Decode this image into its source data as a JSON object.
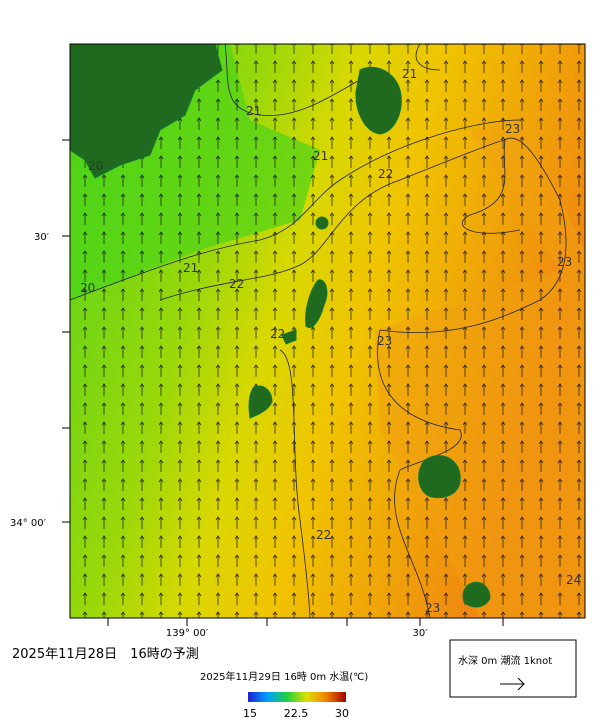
{
  "map": {
    "axis_labels": {
      "lat_30": "30′",
      "lat_34": "34° 00′",
      "lon_139": "139° 00′",
      "lon_30": "30′"
    },
    "contour_labels": [
      21,
      21,
      21,
      21,
      20,
      20,
      22,
      22,
      22,
      22,
      23,
      23,
      23,
      23,
      24
    ],
    "forecast_title": "2025年11月28日　16時の予測",
    "colorbar": {
      "title": "2025年11月29日 16時 0m 水温(℃)",
      "ticks": [
        15,
        22.5,
        30
      ]
    },
    "legend": {
      "title": "水深 0m 潮流 1knot"
    }
  }
}
